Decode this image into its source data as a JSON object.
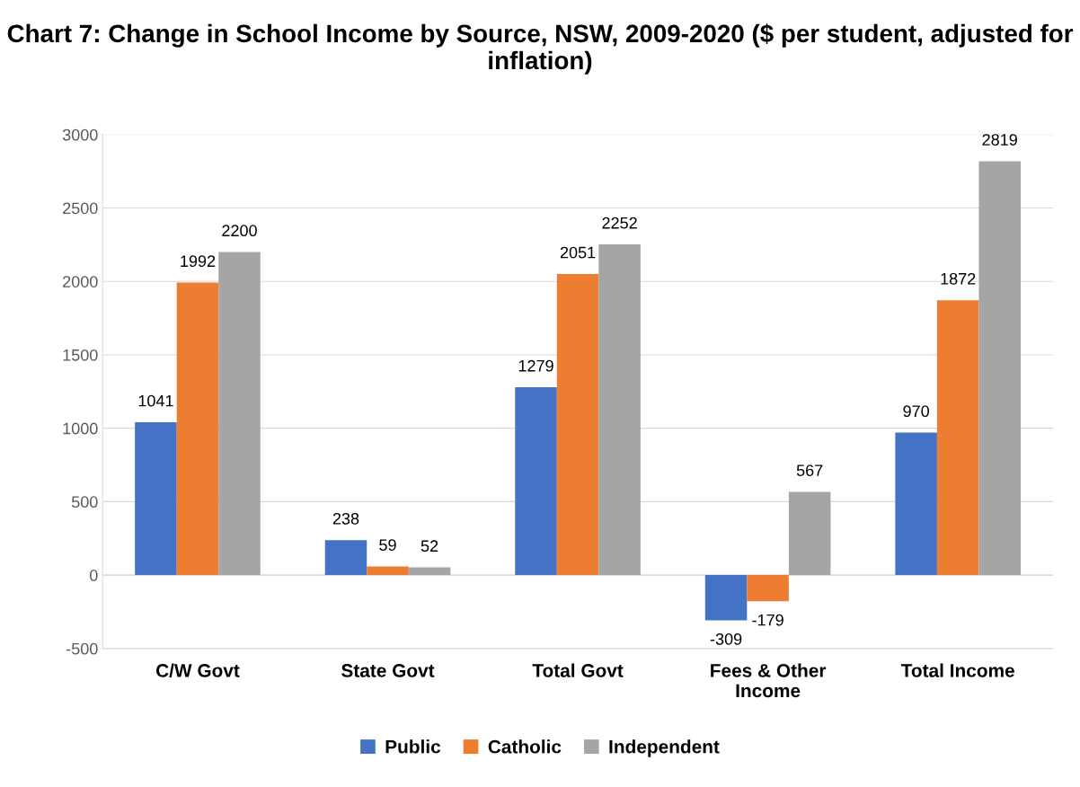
{
  "chart_data": {
    "type": "bar",
    "title": "Chart 7: Change in School Income by Source, NSW, 2009-2020 ($ per student, adjusted for inflation)",
    "categories": [
      "C/W Govt",
      "State Govt",
      "Total Govt",
      "Fees & Other Income",
      "Total Income"
    ],
    "series": [
      {
        "name": "Public",
        "color": "#4472c4",
        "values": [
          1041,
          238,
          1279,
          -309,
          970
        ]
      },
      {
        "name": "Catholic",
        "color": "#ed7d31",
        "values": [
          1992,
          59,
          2051,
          -179,
          1872
        ]
      },
      {
        "name": "Independent",
        "color": "#a5a5a5",
        "values": [
          2200,
          52,
          2252,
          567,
          2819
        ]
      }
    ],
    "ylim": [
      -500,
      3000
    ],
    "yticks": [
      -500,
      0,
      500,
      1000,
      1500,
      2000,
      2500,
      3000
    ],
    "grid": "y",
    "legend": "bottom",
    "data_labels": true
  }
}
